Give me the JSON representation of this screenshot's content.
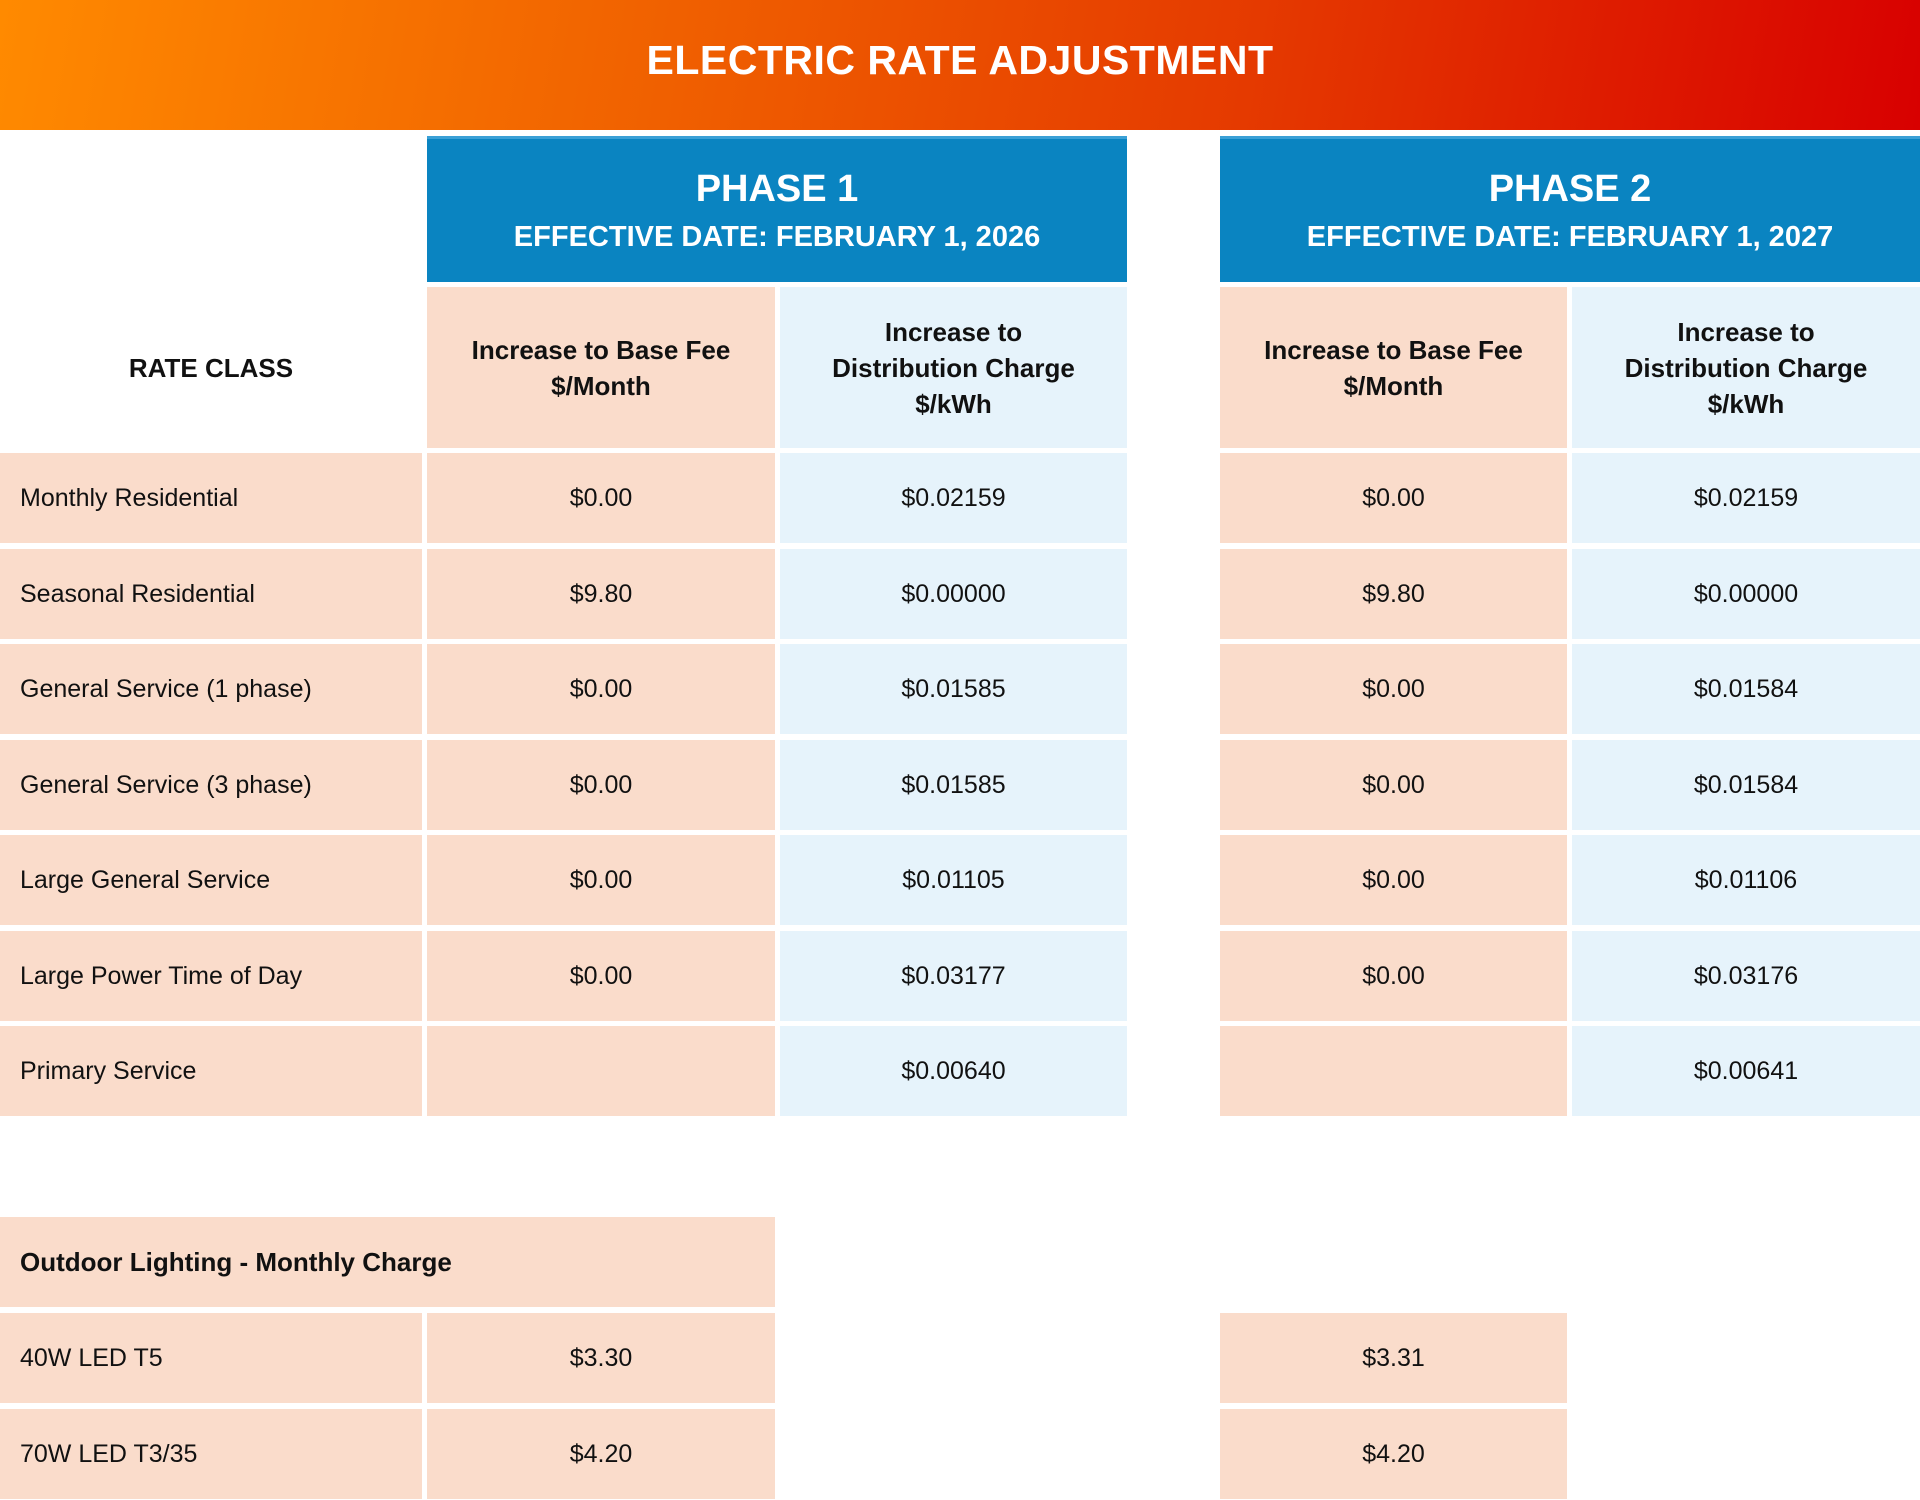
{
  "title": "ELECTRIC RATE ADJUSTMENT",
  "colors": {
    "peach": "#fadccb",
    "light_blue": "#e6f3fb",
    "phase_blue": "#0a84c1",
    "banner_start": "#ff8a00",
    "banner_end": "#d80000"
  },
  "phases": [
    {
      "title": "PHASE 1",
      "date": "EFFECTIVE DATE: FEBRUARY 1, 2026"
    },
    {
      "title": "PHASE 2",
      "date": "EFFECTIVE DATE: FEBRUARY 1, 2027"
    }
  ],
  "columns": {
    "rate_class": "RATE CLASS",
    "base_fee": [
      "Increase to Base Fee",
      "$/Month"
    ],
    "distribution": [
      "Increase to",
      "Distribution Charge",
      "$/kWh"
    ]
  },
  "rows": [
    {
      "name": "Monthly Residential",
      "p1_base": "$0.00",
      "p1_dist": "$0.02159",
      "p2_base": "$0.00",
      "p2_dist": "$0.02159"
    },
    {
      "name": "Seasonal Residential",
      "p1_base": "$9.80",
      "p1_dist": "$0.00000",
      "p2_base": "$9.80",
      "p2_dist": "$0.00000"
    },
    {
      "name": "General Service (1 phase)",
      "p1_base": "$0.00",
      "p1_dist": "$0.01585",
      "p2_base": "$0.00",
      "p2_dist": "$0.01584"
    },
    {
      "name": "General Service (3 phase)",
      "p1_base": "$0.00",
      "p1_dist": "$0.01585",
      "p2_base": "$0.00",
      "p2_dist": "$0.01584"
    },
    {
      "name": "Large General Service",
      "p1_base": "$0.00",
      "p1_dist": "$0.01105",
      "p2_base": "$0.00",
      "p2_dist": "$0.01106"
    },
    {
      "name": "Large Power Time of Day",
      "p1_base": "$0.00",
      "p1_dist": "$0.03177",
      "p2_base": "$0.00",
      "p2_dist": "$0.03176"
    },
    {
      "name": "Primary Service",
      "p1_base": "",
      "p1_dist": "$0.00640",
      "p2_base": "",
      "p2_dist": "$0.00641"
    }
  ],
  "outdoor": {
    "heading": "Outdoor Lighting - Monthly Charge",
    "rows": [
      {
        "name": "40W LED T5",
        "p1": "$3.30",
        "p2": "$3.31"
      },
      {
        "name": "70W LED T3/35",
        "p1": "$4.20",
        "p2": "$4.20"
      }
    ]
  }
}
